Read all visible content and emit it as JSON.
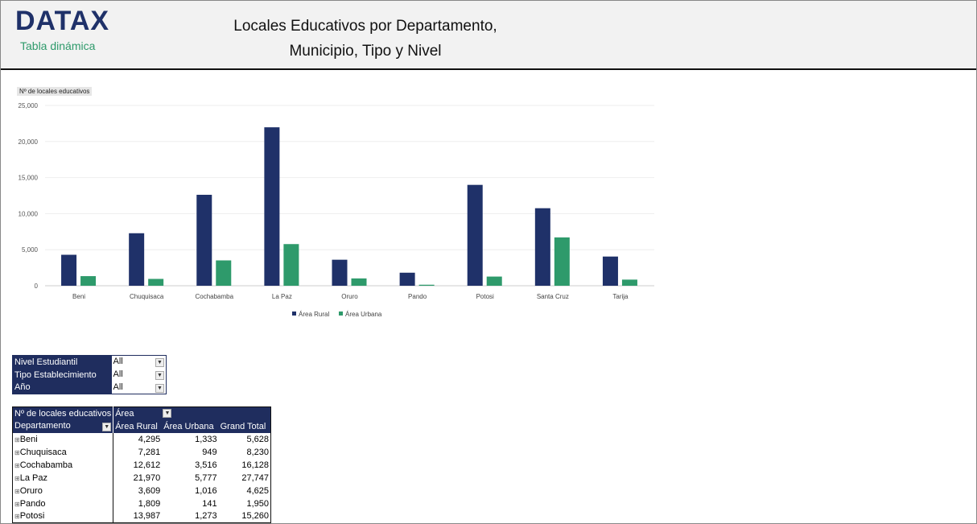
{
  "header": {
    "logo": "DATAX",
    "subtitle": "Tabla dinámica",
    "title_line1": "Locales Educativos por Departamento,",
    "title_line2": "Municipio, Tipo y Nivel"
  },
  "chart_data": {
    "type": "bar",
    "title": "Nº de locales educativos",
    "categories": [
      "Beni",
      "Chuquisaca",
      "Cochabamba",
      "La Paz",
      "Oruro",
      "Pando",
      "Potosi",
      "Santa Cruz",
      "Tarija"
    ],
    "series": [
      {
        "name": "Área Rural",
        "color": "#1f3169",
        "values": [
          4295,
          7281,
          12612,
          21970,
          3609,
          1809,
          13987,
          10750,
          4050
        ]
      },
      {
        "name": "Área Urbana",
        "color": "#2e9a6b",
        "values": [
          1333,
          949,
          3516,
          5777,
          1016,
          141,
          1273,
          6700,
          850
        ]
      }
    ],
    "ylim": [
      0,
      25000
    ],
    "yticks": [
      "0",
      "5,000",
      "10,000",
      "15,000",
      "20,000",
      "25,000"
    ],
    "grid": true,
    "legend": "bottom"
  },
  "filters": [
    {
      "label": "Nivel Estudiantil",
      "value": "All"
    },
    {
      "label": "Tipo Establecimiento",
      "value": "All"
    },
    {
      "label": "Año",
      "value": "All"
    }
  ],
  "pivot": {
    "measure": "Nº de locales educativos",
    "col_field": "Área",
    "row_field": "Departamento",
    "columns": [
      "Área Rural",
      "Área Urbana",
      "Grand Total"
    ],
    "rows": [
      [
        "Beni",
        "4,295",
        "1,333",
        "5,628"
      ],
      [
        "Chuquisaca",
        "7,281",
        "949",
        "8,230"
      ],
      [
        "Cochabamba",
        "12,612",
        "3,516",
        "16,128"
      ],
      [
        "La Paz",
        "21,970",
        "5,777",
        "27,747"
      ],
      [
        "Oruro",
        "3,609",
        "1,016",
        "4,625"
      ],
      [
        "Pando",
        "1,809",
        "141",
        "1,950"
      ],
      [
        "Potosi",
        "13,987",
        "1,273",
        "15,260"
      ]
    ]
  }
}
